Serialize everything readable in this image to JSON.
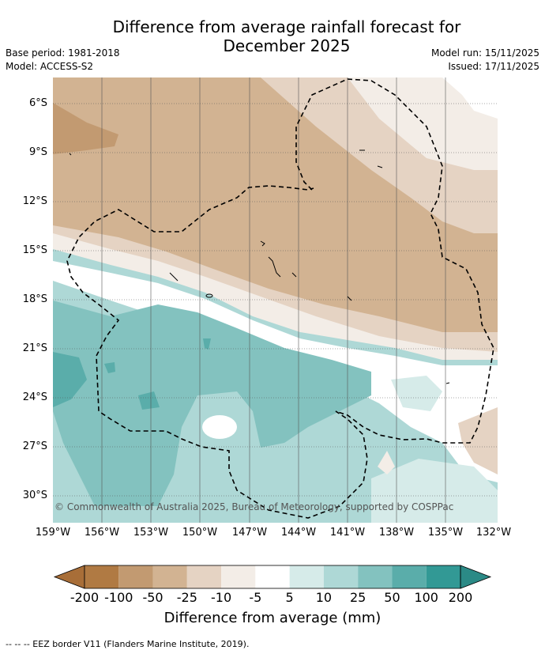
{
  "title_line1": "Difference from average rainfall forecast for",
  "title_line2": "December 2025",
  "base_period": "Base period: 1981-2018",
  "model": "Model: ACCESS-S2",
  "model_run": "Model run: 15/11/2025",
  "issued": "Issued: 17/11/2025",
  "copyright": "© Commonwealth of Australia 2025, Bureau of Meteorology, supported by COSPPac",
  "lat_labels": [
    "6°S",
    "9°S",
    "12°S",
    "15°S",
    "18°S",
    "21°S",
    "24°S",
    "27°S",
    "30°S"
  ],
  "lon_labels": [
    "159°W",
    "156°W",
    "153°W",
    "150°W",
    "147°W",
    "144°W",
    "141°W",
    "138°W",
    "135°W",
    "132°W"
  ],
  "colorbar": {
    "ticks": [
      "-200",
      "-100",
      "-50",
      "-25",
      "-10",
      "-5",
      "5",
      "10",
      "25",
      "50",
      "100",
      "200"
    ],
    "colors": [
      "#a86e38",
      "#b07a43",
      "#c29a71",
      "#d2b392",
      "#e5d3c3",
      "#f3ede7",
      "#ffffff",
      "#d6ebe9",
      "#aed8d6",
      "#83c2bf",
      "#5aadaa",
      "#329995",
      "#2b8a86"
    ],
    "title": "Difference from average (mm)"
  },
  "footnote": "--  --  -- EEZ border V11 (Flanders Marine Institute, 2019)."
}
